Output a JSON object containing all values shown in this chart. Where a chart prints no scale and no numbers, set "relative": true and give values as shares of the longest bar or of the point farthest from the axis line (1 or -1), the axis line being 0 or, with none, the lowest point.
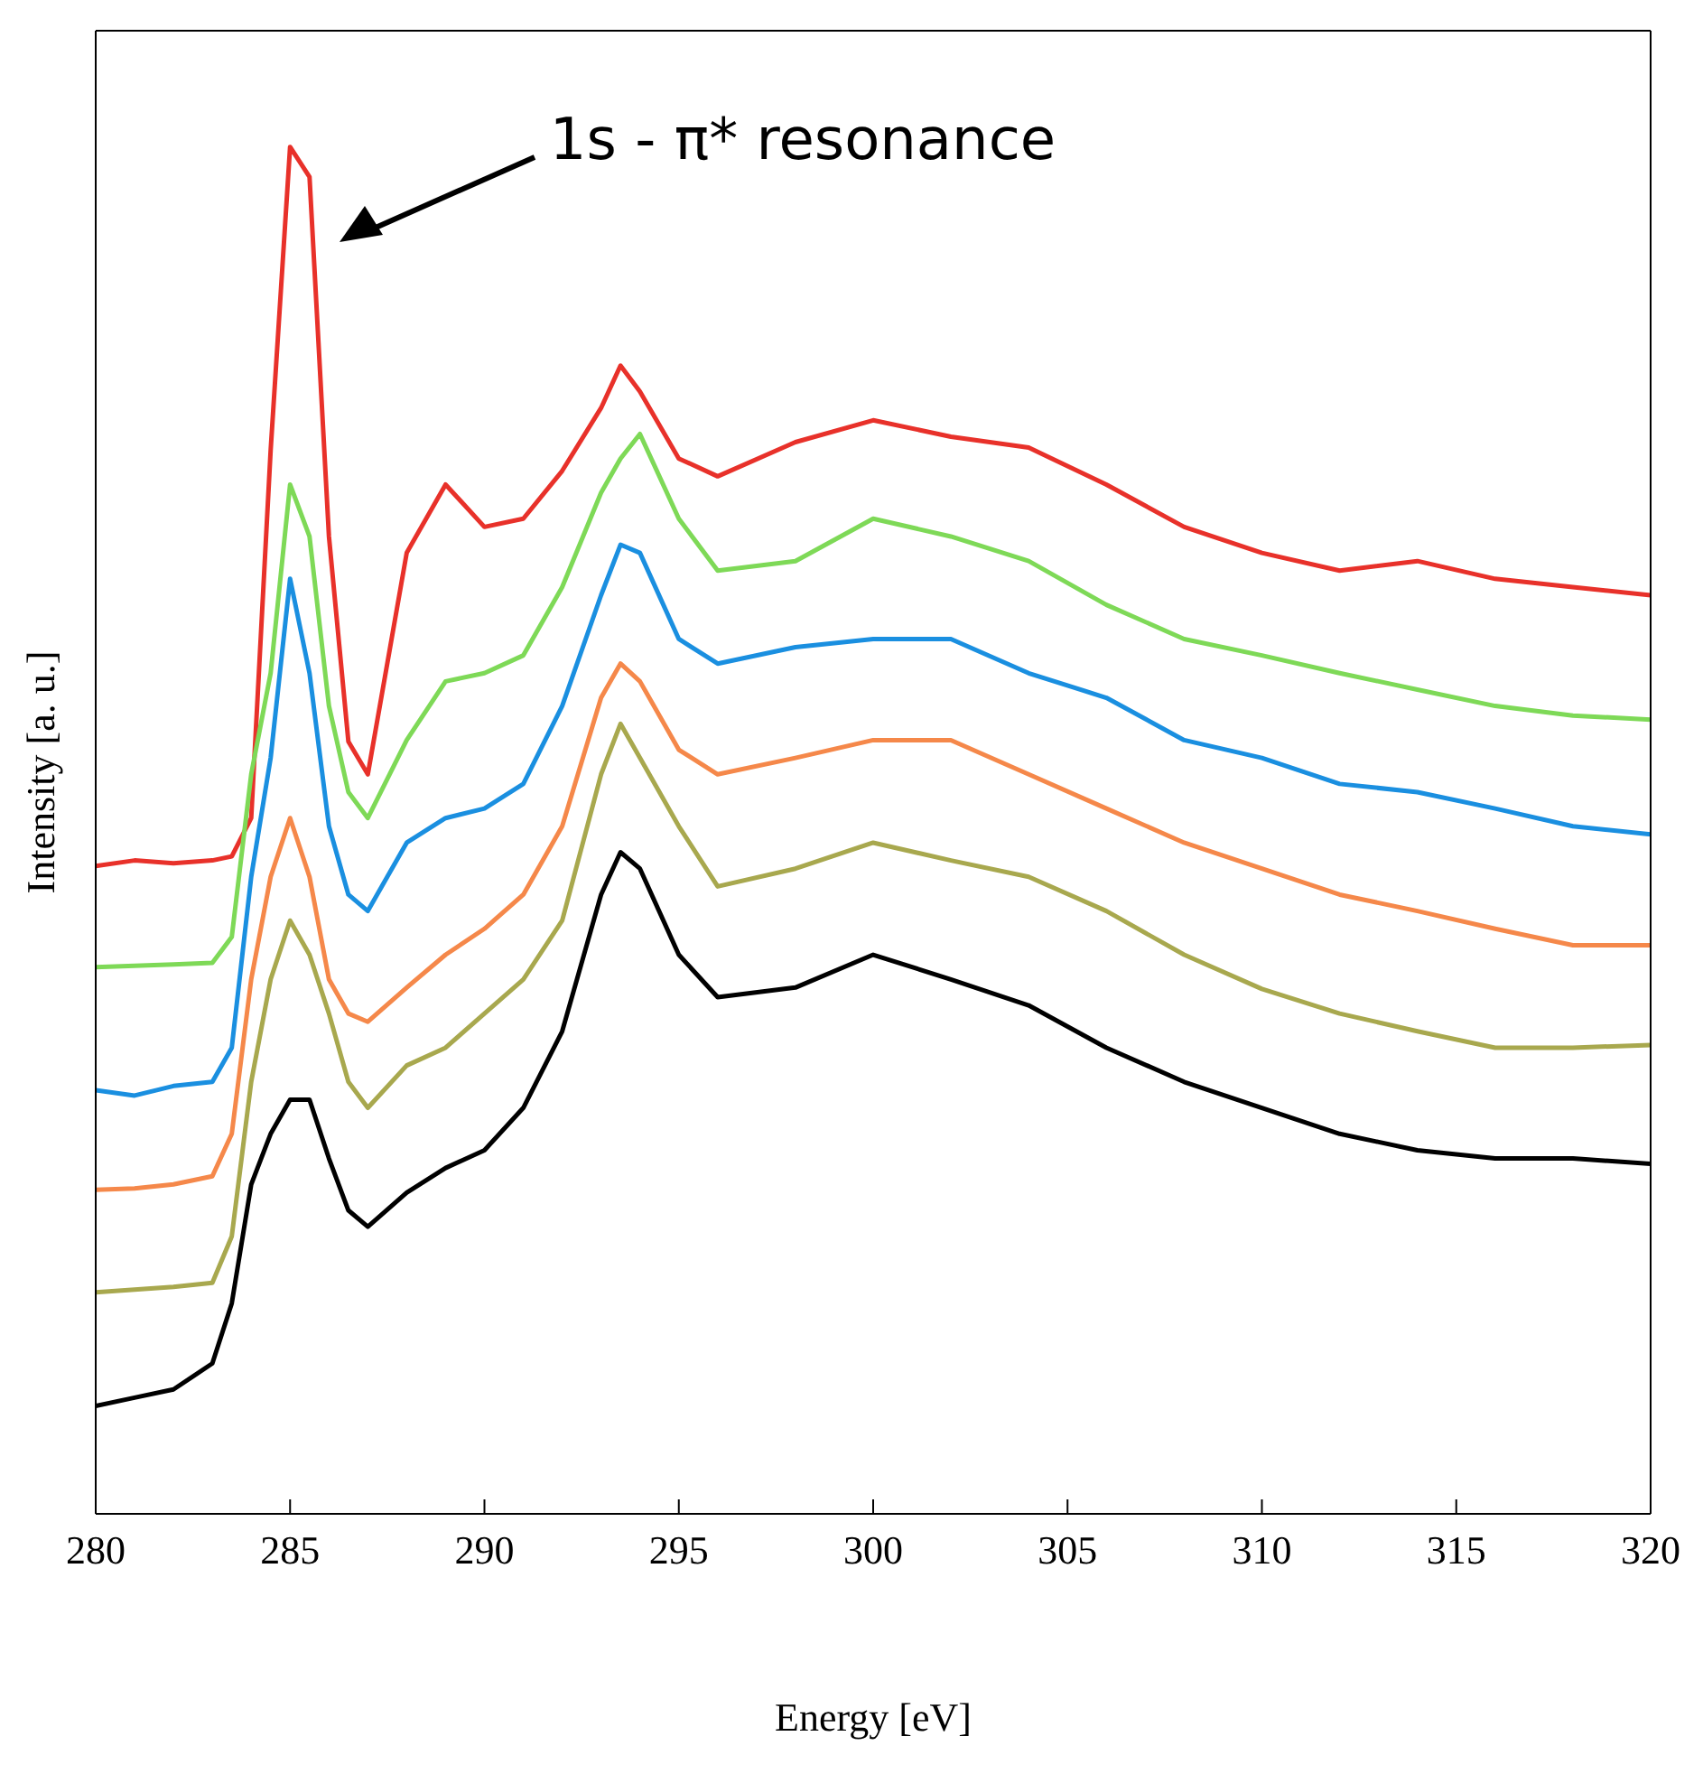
{
  "chart_data": {
    "type": "line",
    "relative": true,
    "xlabel": "Energy [eV]",
    "ylabel": "Intensity [a. u.]",
    "annotations": [
      "1s - π* resonance"
    ],
    "xlim": [
      280,
      320
    ],
    "xticks": [
      280,
      285,
      290,
      295,
      300,
      305,
      310,
      315,
      320
    ],
    "marker": "none",
    "line_style": "solid",
    "x": [
      280,
      281,
      282,
      283,
      283.5,
      284,
      284.5,
      285,
      285.5,
      286,
      286.5,
      287,
      288,
      289,
      290,
      291,
      292,
      293,
      293.5,
      294,
      295,
      296,
      298,
      300,
      302,
      304,
      306,
      308,
      310,
      312,
      314,
      316,
      318,
      320
    ],
    "series": [
      {
        "color": "#e8312a",
        "values": [
          0.474,
          0.478,
          0.476,
          0.478,
          0.481,
          0.509,
          0.778,
          1,
          0.978,
          0.715,
          0.565,
          0.541,
          0.703,
          0.753,
          0.722,
          0.728,
          0.763,
          0.809,
          0.84,
          0.821,
          0.772,
          0.759,
          0.784,
          0.8,
          0.788,
          0.78,
          0.753,
          0.722,
          0.703,
          0.69,
          0.697,
          0.684,
          0.678,
          0.672
        ]
      },
      {
        "color": "#7ed957",
        "values": [
          0.4,
          0.401,
          0.402,
          0.403,
          0.422,
          0.541,
          0.615,
          0.753,
          0.715,
          0.591,
          0.528,
          0.509,
          0.566,
          0.609,
          0.615,
          0.628,
          0.678,
          0.747,
          0.772,
          0.79,
          0.728,
          0.69,
          0.697,
          0.728,
          0.715,
          0.697,
          0.665,
          0.64,
          0.628,
          0.615,
          0.603,
          0.591,
          0.584,
          0.581
        ]
      },
      {
        "color": "#1a8fe0",
        "values": [
          0.31,
          0.306,
          0.313,
          0.316,
          0.341,
          0.466,
          0.553,
          0.684,
          0.615,
          0.503,
          0.453,
          0.441,
          0.491,
          0.509,
          0.516,
          0.534,
          0.591,
          0.672,
          0.709,
          0.703,
          0.64,
          0.622,
          0.634,
          0.64,
          0.64,
          0.615,
          0.597,
          0.566,
          0.553,
          0.534,
          0.528,
          0.516,
          0.503,
          0.497
        ]
      },
      {
        "color": "#f5884a",
        "values": [
          0.237,
          0.238,
          0.241,
          0.247,
          0.278,
          0.391,
          0.466,
          0.509,
          0.466,
          0.391,
          0.366,
          0.36,
          0.385,
          0.409,
          0.428,
          0.453,
          0.503,
          0.597,
          0.622,
          0.609,
          0.559,
          0.541,
          0.553,
          0.566,
          0.566,
          0.541,
          0.516,
          0.491,
          0.472,
          0.453,
          0.441,
          0.428,
          0.416,
          0.416
        ]
      },
      {
        "color": "#a8a84e",
        "values": [
          0.162,
          0.164,
          0.166,
          0.169,
          0.203,
          0.316,
          0.391,
          0.434,
          0.409,
          0.366,
          0.316,
          0.297,
          0.328,
          0.341,
          0.366,
          0.391,
          0.434,
          0.541,
          0.578,
          0.553,
          0.503,
          0.459,
          0.472,
          0.491,
          0.478,
          0.466,
          0.441,
          0.409,
          0.384,
          0.366,
          0.353,
          0.341,
          0.341,
          0.343
        ]
      },
      {
        "color": "#000000",
        "values": [
          0.079,
          0.085,
          0.091,
          0.11,
          0.154,
          0.241,
          0.278,
          0.303,
          0.303,
          0.26,
          0.222,
          0.21,
          0.235,
          0.253,
          0.266,
          0.297,
          0.353,
          0.453,
          0.484,
          0.472,
          0.409,
          0.378,
          0.385,
          0.409,
          0.391,
          0.372,
          0.341,
          0.316,
          0.297,
          0.278,
          0.266,
          0.26,
          0.26,
          0.256
        ]
      }
    ]
  }
}
